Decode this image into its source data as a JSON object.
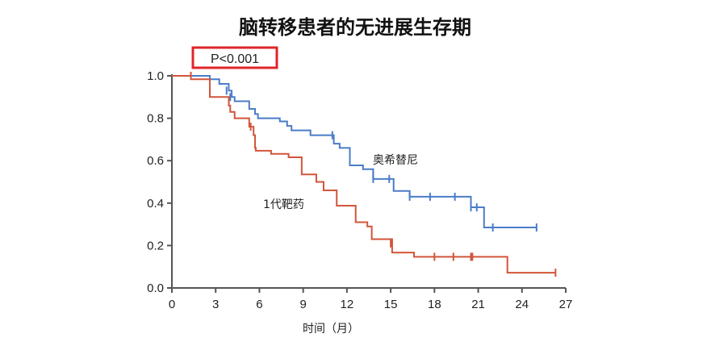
{
  "chart_data": {
    "type": "line",
    "subtype": "kaplan-meier",
    "title": "脑转移患者的无进展生存期",
    "xlabel": "时间（月）",
    "ylabel": "",
    "xlim": [
      0,
      27
    ],
    "ylim": [
      0,
      1.0
    ],
    "xticks": [
      "0",
      "3",
      "6",
      "9",
      "12",
      "15",
      "18",
      "21",
      "24",
      "27"
    ],
    "yticks": [
      "0.0",
      "0.2",
      "0.4",
      "0.6",
      "0.8",
      "1.0"
    ],
    "p_value": "P<0.001",
    "p_value_box_color": "#e0252b",
    "grid": false,
    "series": [
      {
        "name": "奥希替尼",
        "color": "#4a7cc7",
        "steps": [
          [
            0,
            1.0
          ],
          [
            2.6,
            0.984
          ],
          [
            3.25,
            0.962
          ],
          [
            3.9,
            0.93
          ],
          [
            4.1,
            0.9
          ],
          [
            4.3,
            0.88
          ],
          [
            5.3,
            0.844
          ],
          [
            5.7,
            0.82
          ],
          [
            5.9,
            0.8
          ],
          [
            7.4,
            0.785
          ],
          [
            7.9,
            0.764
          ],
          [
            8.2,
            0.743
          ],
          [
            9.5,
            0.72
          ],
          [
            11.1,
            0.68
          ],
          [
            11.5,
            0.66
          ],
          [
            12.2,
            0.578
          ],
          [
            13.1,
            0.56
          ],
          [
            13.8,
            0.514
          ],
          [
            15.2,
            0.457
          ],
          [
            16.3,
            0.43
          ],
          [
            20.5,
            0.38
          ],
          [
            21.4,
            0.285
          ],
          [
            25.0,
            0.285
          ]
        ],
        "censored": [
          [
            3.75,
            0.93
          ],
          [
            4.0,
            0.9
          ],
          [
            11.0,
            0.72
          ],
          [
            13.8,
            0.53
          ],
          [
            13.8,
            0.514
          ],
          [
            14.9,
            0.514
          ],
          [
            16.3,
            0.43
          ],
          [
            17.7,
            0.43
          ],
          [
            19.4,
            0.43
          ],
          [
            20.5,
            0.38
          ],
          [
            20.9,
            0.38
          ],
          [
            22.0,
            0.285
          ],
          [
            25.0,
            0.285
          ]
        ]
      },
      {
        "name": "1代靶药",
        "color": "#d2553a",
        "steps": [
          [
            0,
            1.0
          ],
          [
            1.3,
            0.984
          ],
          [
            2.6,
            0.9
          ],
          [
            3.9,
            0.86
          ],
          [
            4.0,
            0.83
          ],
          [
            4.3,
            0.8
          ],
          [
            5.3,
            0.76
          ],
          [
            5.6,
            0.72
          ],
          [
            5.7,
            0.66
          ],
          [
            5.75,
            0.647
          ],
          [
            6.8,
            0.632
          ],
          [
            8.0,
            0.616
          ],
          [
            8.9,
            0.535
          ],
          [
            9.9,
            0.5
          ],
          [
            10.4,
            0.46
          ],
          [
            11.3,
            0.388
          ],
          [
            12.6,
            0.31
          ],
          [
            13.4,
            0.29
          ],
          [
            13.7,
            0.23
          ],
          [
            15.1,
            0.167
          ],
          [
            16.6,
            0.147
          ],
          [
            23.0,
            0.072
          ],
          [
            26.3,
            0.072
          ]
        ],
        "censored": [
          [
            1.3,
            1.0
          ],
          [
            5.4,
            0.76
          ],
          [
            15.0,
            0.21
          ],
          [
            18.0,
            0.147
          ],
          [
            19.3,
            0.147
          ],
          [
            20.5,
            0.147
          ],
          [
            20.6,
            0.147
          ],
          [
            26.3,
            0.072
          ]
        ]
      }
    ],
    "annotations": [
      "奥希替尼",
      "1代靶药"
    ]
  }
}
